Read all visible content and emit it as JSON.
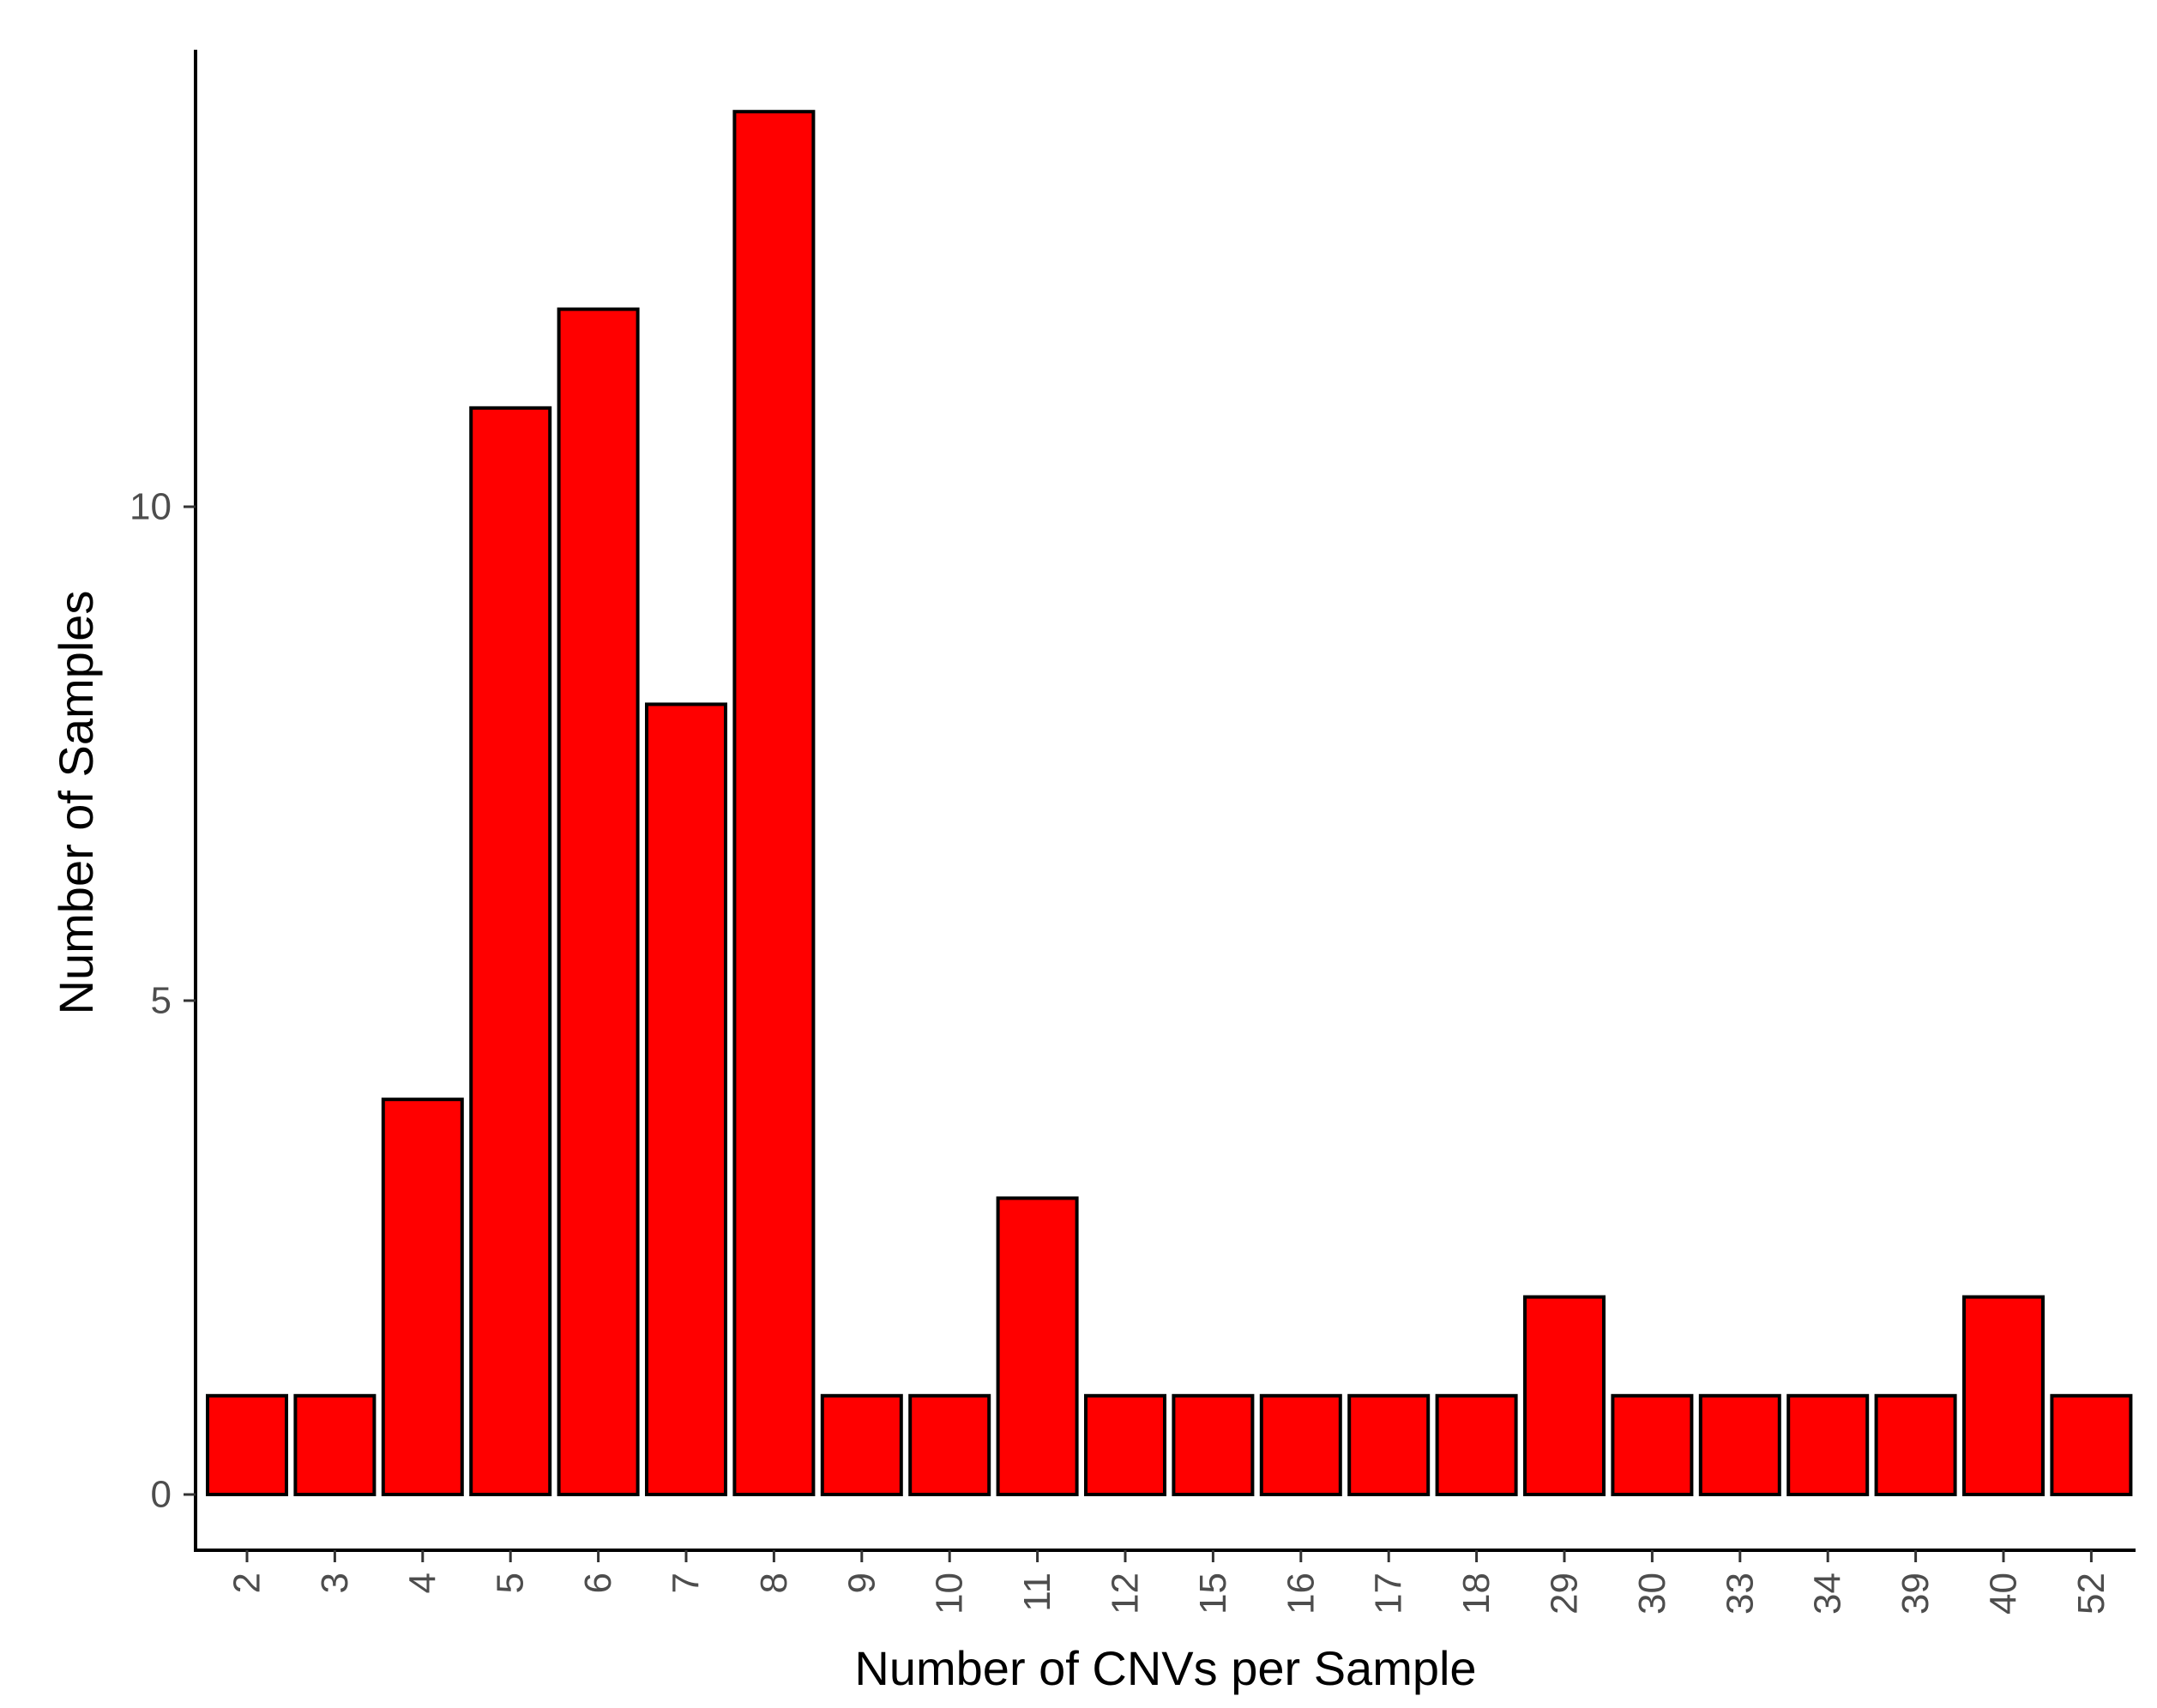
{
  "chart_data": {
    "type": "bar",
    "categories": [
      "2",
      "3",
      "4",
      "5",
      "6",
      "7",
      "8",
      "9",
      "10",
      "11",
      "12",
      "15",
      "16",
      "17",
      "18",
      "29",
      "30",
      "33",
      "34",
      "39",
      "40",
      "52"
    ],
    "values": [
      1,
      1,
      4,
      11,
      12,
      8,
      14,
      1,
      1,
      3,
      1,
      1,
      1,
      1,
      1,
      2,
      1,
      1,
      1,
      1,
      2,
      1
    ],
    "xlabel": "Number of CNVs per Sample",
    "ylabel": "Number of Samples",
    "ylim": [
      -0.7,
      14.7
    ],
    "yticks": [
      0,
      5,
      10
    ],
    "ytick_labels": [
      "0",
      "5",
      "10"
    ],
    "grid": false,
    "bar_fill": "#ff0000",
    "bar_stroke": "#000000"
  }
}
